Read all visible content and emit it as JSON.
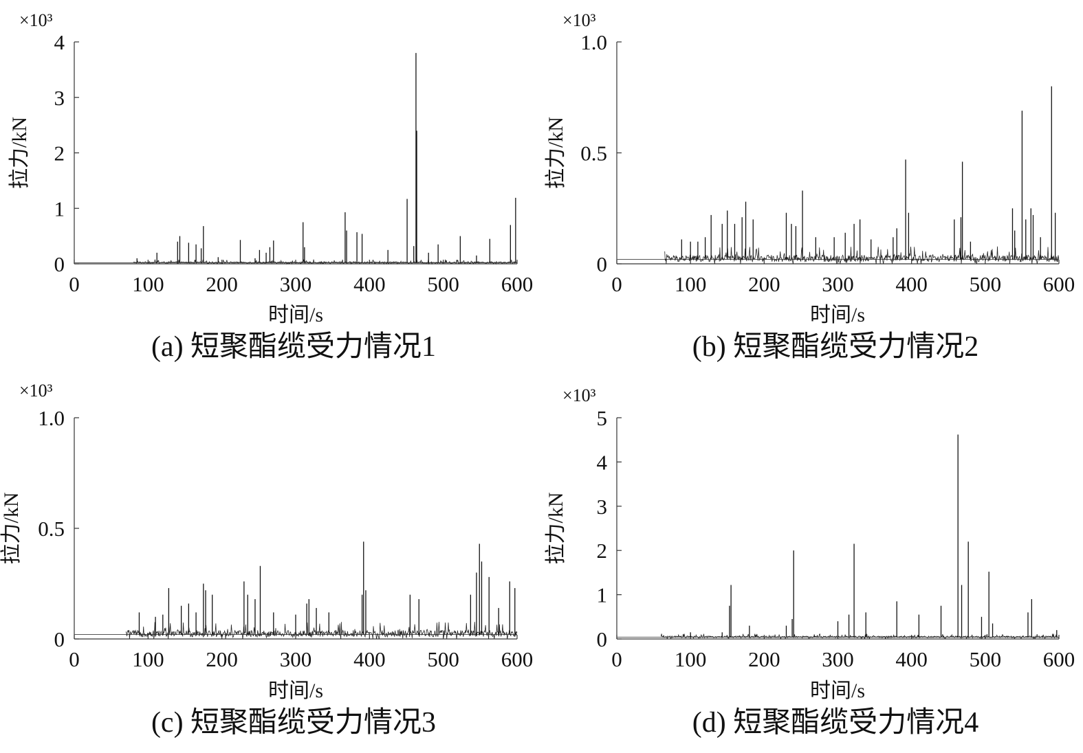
{
  "chart_data": [
    {
      "id": "a",
      "type": "line",
      "caption": "(a) 短聚酯缆受力情况1",
      "xlabel": "时间/s",
      "ylabel": "拉力/kN",
      "multiplier": "×10³",
      "xlim": [
        0,
        600
      ],
      "ylim": [
        0,
        4
      ],
      "xticks": [
        "0",
        "100",
        "200",
        "300",
        "400",
        "500",
        "600"
      ],
      "yticks": [
        "0",
        "1",
        "2",
        "3",
        "4"
      ],
      "baseline": 0.02,
      "noise_amp": 0.03,
      "noise_start": 80,
      "peaks": [
        [
          85,
          0.1
        ],
        [
          112,
          0.2
        ],
        [
          140,
          0.4
        ],
        [
          143,
          0.5
        ],
        [
          155,
          0.38
        ],
        [
          165,
          0.35
        ],
        [
          172,
          0.28
        ],
        [
          175,
          0.68
        ],
        [
          195,
          0.12
        ],
        [
          225,
          0.43
        ],
        [
          245,
          0.1
        ],
        [
          251,
          0.25
        ],
        [
          260,
          0.2
        ],
        [
          265,
          0.3
        ],
        [
          270,
          0.42
        ],
        [
          310,
          0.75
        ],
        [
          312,
          0.3
        ],
        [
          367,
          0.93
        ],
        [
          369,
          0.6
        ],
        [
          383,
          0.57
        ],
        [
          390,
          0.54
        ],
        [
          425,
          0.25
        ],
        [
          451,
          1.17
        ],
        [
          460,
          0.32
        ],
        [
          463,
          3.8
        ],
        [
          464,
          2.4
        ],
        [
          480,
          0.2
        ],
        [
          493,
          0.35
        ],
        [
          523,
          0.5
        ],
        [
          545,
          0.15
        ],
        [
          563,
          0.45
        ],
        [
          591,
          0.7
        ],
        [
          598,
          1.19
        ]
      ]
    },
    {
      "id": "b",
      "type": "line",
      "caption": "(b) 短聚酯缆受力情况2",
      "xlabel": "时间/s",
      "ylabel": "拉力/kN",
      "multiplier": "×10³",
      "xlim": [
        0,
        600
      ],
      "ylim": [
        0,
        1.0
      ],
      "xticks": [
        "0",
        "100",
        "200",
        "300",
        "400",
        "500",
        "600"
      ],
      "yticks": [
        "0",
        "0.5",
        "1.0"
      ],
      "baseline": 0.02,
      "noise_amp": 0.03,
      "noise_start": 65,
      "peaks": [
        [
          88,
          0.11
        ],
        [
          100,
          0.1
        ],
        [
          110,
          0.1
        ],
        [
          120,
          0.12
        ],
        [
          128,
          0.22
        ],
        [
          143,
          0.18
        ],
        [
          150,
          0.24
        ],
        [
          160,
          0.18
        ],
        [
          170,
          0.21
        ],
        [
          175,
          0.28
        ],
        [
          185,
          0.2
        ],
        [
          230,
          0.23
        ],
        [
          237,
          0.18
        ],
        [
          243,
          0.17
        ],
        [
          252,
          0.33
        ],
        [
          270,
          0.12
        ],
        [
          295,
          0.12
        ],
        [
          310,
          0.14
        ],
        [
          322,
          0.18
        ],
        [
          330,
          0.2
        ],
        [
          345,
          0.11
        ],
        [
          375,
          0.12
        ],
        [
          380,
          0.16
        ],
        [
          392,
          0.47
        ],
        [
          396,
          0.23
        ],
        [
          458,
          0.2
        ],
        [
          467,
          0.21
        ],
        [
          469,
          0.46
        ],
        [
          480,
          0.1
        ],
        [
          537,
          0.25
        ],
        [
          540,
          0.15
        ],
        [
          550,
          0.69
        ],
        [
          555,
          0.2
        ],
        [
          562,
          0.25
        ],
        [
          565,
          0.22
        ],
        [
          575,
          0.12
        ],
        [
          590,
          0.8
        ],
        [
          595,
          0.23
        ]
      ]
    },
    {
      "id": "c",
      "type": "line",
      "caption": "(c) 短聚酯缆受力情况3",
      "xlabel": "时间/s",
      "ylabel": "拉力/kN",
      "multiplier": "×10³",
      "xlim": [
        0,
        600
      ],
      "ylim": [
        0,
        1.0
      ],
      "xticks": [
        "0",
        "100",
        "200",
        "300",
        "400",
        "500",
        "600"
      ],
      "yticks": [
        "0",
        "0.5",
        "1.0"
      ],
      "baseline": 0.02,
      "noise_amp": 0.03,
      "noise_start": 70,
      "peaks": [
        [
          88,
          0.12
        ],
        [
          110,
          0.1
        ],
        [
          120,
          0.11
        ],
        [
          128,
          0.23
        ],
        [
          145,
          0.15
        ],
        [
          155,
          0.16
        ],
        [
          165,
          0.12
        ],
        [
          175,
          0.25
        ],
        [
          178,
          0.22
        ],
        [
          187,
          0.2
        ],
        [
          230,
          0.26
        ],
        [
          235,
          0.2
        ],
        [
          245,
          0.18
        ],
        [
          252,
          0.33
        ],
        [
          270,
          0.12
        ],
        [
          300,
          0.11
        ],
        [
          315,
          0.16
        ],
        [
          318,
          0.18
        ],
        [
          328,
          0.14
        ],
        [
          345,
          0.12
        ],
        [
          390,
          0.2
        ],
        [
          392,
          0.44
        ],
        [
          395,
          0.22
        ],
        [
          455,
          0.2
        ],
        [
          467,
          0.18
        ],
        [
          537,
          0.2
        ],
        [
          545,
          0.3
        ],
        [
          549,
          0.43
        ],
        [
          552,
          0.35
        ],
        [
          562,
          0.28
        ],
        [
          575,
          0.14
        ],
        [
          590,
          0.26
        ],
        [
          597,
          0.23
        ]
      ]
    },
    {
      "id": "d",
      "type": "line",
      "caption": "(d) 短聚酯缆受力情况4",
      "xlabel": "时间/s",
      "ylabel": "拉力/kN",
      "multiplier": "×10³",
      "xlim": [
        0,
        600
      ],
      "ylim": [
        0,
        5
      ],
      "xticks": [
        "0",
        "100",
        "200",
        "300",
        "400",
        "500",
        "600"
      ],
      "yticks": [
        "0",
        "1",
        "2",
        "3",
        "4",
        "5"
      ],
      "baseline": 0.04,
      "noise_amp": 0.04,
      "noise_start": 60,
      "peaks": [
        [
          100,
          0.15
        ],
        [
          143,
          0.15
        ],
        [
          153,
          0.75
        ],
        [
          155,
          1.22
        ],
        [
          180,
          0.3
        ],
        [
          230,
          0.3
        ],
        [
          238,
          0.45
        ],
        [
          240,
          2.0
        ],
        [
          268,
          0.1
        ],
        [
          300,
          0.4
        ],
        [
          315,
          0.55
        ],
        [
          322,
          2.15
        ],
        [
          338,
          0.6
        ],
        [
          380,
          0.85
        ],
        [
          410,
          0.55
        ],
        [
          440,
          0.75
        ],
        [
          463,
          4.62
        ],
        [
          468,
          1.22
        ],
        [
          477,
          2.2
        ],
        [
          495,
          0.5
        ],
        [
          505,
          1.52
        ],
        [
          510,
          0.35
        ],
        [
          558,
          0.6
        ],
        [
          563,
          0.9
        ],
        [
          597,
          0.2
        ]
      ]
    }
  ]
}
